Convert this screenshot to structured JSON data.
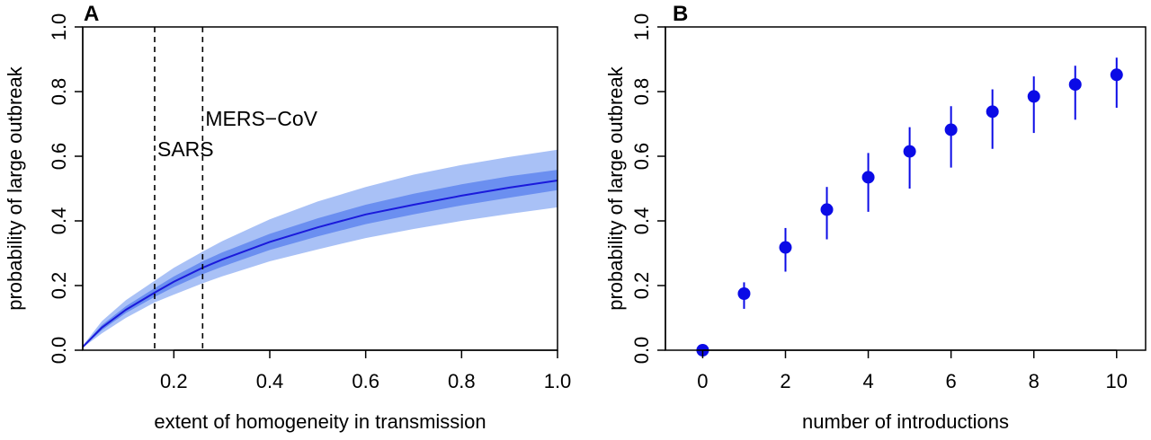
{
  "chart_data": [
    {
      "type": "line",
      "panel_label": "A",
      "xlabel": "extent of homogeneity in transmission",
      "ylabel": "probability of large outbreak",
      "xlim": [
        0.01,
        1.0
      ],
      "ylim": [
        0.0,
        1.0
      ],
      "x_ticks": [
        0.2,
        0.4,
        0.6,
        0.8,
        1.0
      ],
      "x_tick_labels": [
        "0.2",
        "0.4",
        "0.6",
        "0.8",
        "1.0"
      ],
      "y_ticks": [
        0.0,
        0.2,
        0.4,
        0.6,
        0.8,
        1.0
      ],
      "y_tick_labels": [
        "0.0",
        "0.2",
        "0.4",
        "0.6",
        "0.8",
        "1.0"
      ],
      "grid": false,
      "x": [
        0.01,
        0.05,
        0.1,
        0.16,
        0.2,
        0.26,
        0.3,
        0.4,
        0.5,
        0.6,
        0.7,
        0.8,
        0.9,
        1.0
      ],
      "series": [
        {
          "values": [
            0.01,
            0.07,
            0.125,
            0.178,
            0.212,
            0.255,
            0.28,
            0.335,
            0.38,
            0.42,
            0.45,
            0.478,
            0.503,
            0.525
          ]
        }
      ],
      "inner_band_lower": [
        0.01,
        0.062,
        0.115,
        0.165,
        0.195,
        0.235,
        0.258,
        0.31,
        0.352,
        0.39,
        0.42,
        0.448,
        0.472,
        0.495
      ],
      "inner_band_upper": [
        0.012,
        0.078,
        0.136,
        0.192,
        0.228,
        0.275,
        0.302,
        0.36,
        0.408,
        0.45,
        0.484,
        0.513,
        0.538,
        0.558
      ],
      "outer_band_lower": [
        0.008,
        0.052,
        0.1,
        0.148,
        0.172,
        0.207,
        0.228,
        0.275,
        0.312,
        0.347,
        0.375,
        0.4,
        0.422,
        0.442
      ],
      "outer_band_upper": [
        0.014,
        0.09,
        0.155,
        0.215,
        0.255,
        0.305,
        0.337,
        0.405,
        0.46,
        0.505,
        0.543,
        0.573,
        0.598,
        0.62
      ],
      "colors": {
        "line": "#1a1adb",
        "inner_band": "#6b8ff0",
        "outer_band": "#a9c1f6"
      },
      "reference_lines": [
        {
          "x": 0.16,
          "label": "SARS",
          "label_y": 0.6
        },
        {
          "x": 0.26,
          "label": "MERS−CoV",
          "label_y": 0.695
        }
      ]
    },
    {
      "type": "scatter",
      "panel_label": "B",
      "xlabel": "number of introductions",
      "ylabel": "probability of large outbreak",
      "xlim": [
        -0.9,
        10.7
      ],
      "ylim": [
        0.0,
        1.0
      ],
      "x_ticks": [
        0,
        2,
        4,
        6,
        8,
        10
      ],
      "x_tick_labels": [
        "0",
        "2",
        "4",
        "6",
        "8",
        "10"
      ],
      "y_ticks": [
        0.0,
        0.2,
        0.4,
        0.6,
        0.8,
        1.0
      ],
      "y_tick_labels": [
        "0.0",
        "0.2",
        "0.4",
        "0.6",
        "0.8",
        "1.0"
      ],
      "grid": false,
      "x": [
        0,
        1,
        2,
        3,
        4,
        5,
        6,
        7,
        8,
        9,
        10
      ],
      "series": [
        {
          "values": [
            0.0,
            0.175,
            0.318,
            0.435,
            0.535,
            0.615,
            0.682,
            0.738,
            0.785,
            0.822,
            0.852
          ],
          "lower": [
            0.0,
            0.128,
            0.243,
            0.343,
            0.428,
            0.5,
            0.565,
            0.623,
            0.672,
            0.713,
            0.75
          ],
          "upper": [
            0.0,
            0.21,
            0.378,
            0.505,
            0.61,
            0.69,
            0.755,
            0.807,
            0.847,
            0.88,
            0.905
          ]
        }
      ],
      "colors": {
        "point": "#0b0be6"
      }
    }
  ]
}
